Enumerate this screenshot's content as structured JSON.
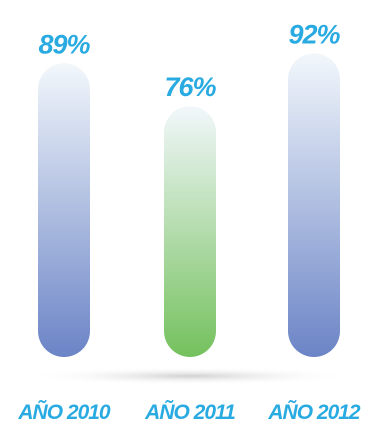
{
  "chart_data": {
    "type": "bar",
    "categories": [
      "AÑO 2010",
      "AÑO 2011",
      "AÑO 2012"
    ],
    "values": [
      89,
      76,
      92
    ],
    "value_labels": [
      "89%",
      "76%",
      "92%"
    ],
    "title": "",
    "xlabel": "",
    "ylabel": "",
    "ylim": [
      0,
      100
    ],
    "grid": false,
    "legend": "none"
  },
  "colors": {
    "label_text": "#29abe2",
    "bar_top": "#f2f7fb",
    "bar_blue": "#6b84c6",
    "bar_green": "#74c15d",
    "shadow": "#c8c8c8"
  },
  "bar_color_keys": [
    "bar_blue",
    "bar_green",
    "bar_blue"
  ]
}
